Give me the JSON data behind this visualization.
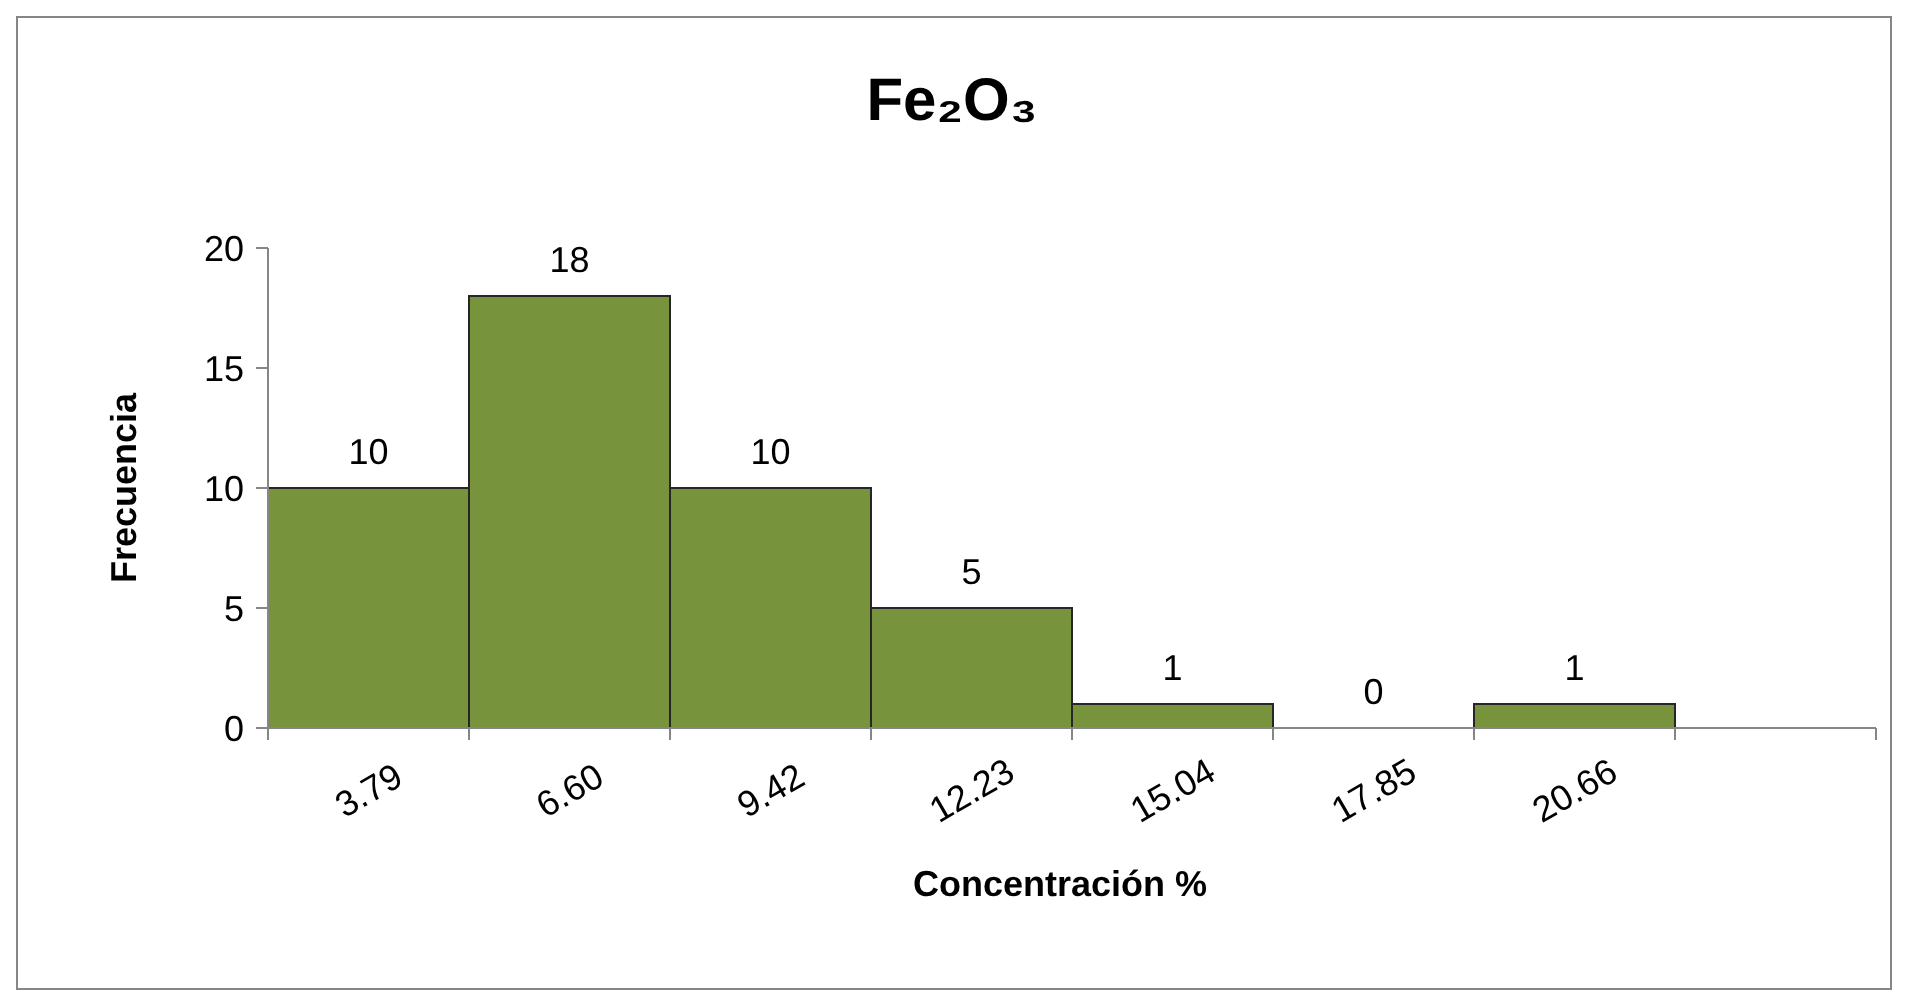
{
  "chart_data": {
    "type": "bar",
    "title": "Fe₂O₃",
    "xlabel": "Concentración %",
    "ylabel": "Frecuencia",
    "categories": [
      "3.79",
      "6.60",
      "9.42",
      "12.23",
      "15.04",
      "17.85",
      "20.66",
      null
    ],
    "values": [
      10,
      18,
      10,
      5,
      1,
      0,
      1,
      null
    ],
    "color": "#77933c",
    "ylim": [
      0,
      20
    ],
    "yticks": [
      0,
      5,
      10,
      15,
      20
    ],
    "data_labels": true,
    "grid": false
  }
}
